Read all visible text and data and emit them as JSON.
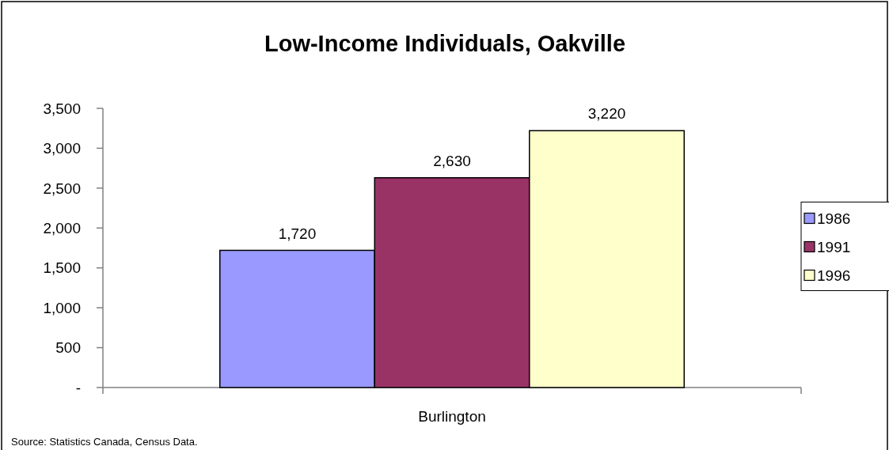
{
  "chart_data": {
    "type": "bar",
    "title": "Low-Income Individuals, Oakville",
    "categories": [
      "Burlington"
    ],
    "series": [
      {
        "name": "1986",
        "color": "#9999ff",
        "values": [
          1720
        ],
        "value_labels": [
          "1,720"
        ]
      },
      {
        "name": "1991",
        "color": "#993366",
        "values": [
          2630
        ],
        "value_labels": [
          "2,630"
        ]
      },
      {
        "name": "1996",
        "color": "#ffffcc",
        "values": [
          3220
        ],
        "value_labels": [
          "3,220"
        ]
      }
    ],
    "ylim": [
      0,
      3500
    ],
    "yticks": [
      {
        "value": 0,
        "label": "-"
      },
      500,
      {
        "value": 1000,
        "label": "1,000"
      },
      {
        "value": 1500,
        "label": "1,500"
      },
      {
        "value": 2000,
        "label": "2,000"
      },
      {
        "value": 2500,
        "label": "2,500"
      },
      {
        "value": 3000,
        "label": "3,000"
      },
      {
        "value": 3500,
        "label": "3,500"
      }
    ],
    "legend": "right",
    "annotations": [
      "Source: Statistics Canada, Census Data."
    ]
  }
}
